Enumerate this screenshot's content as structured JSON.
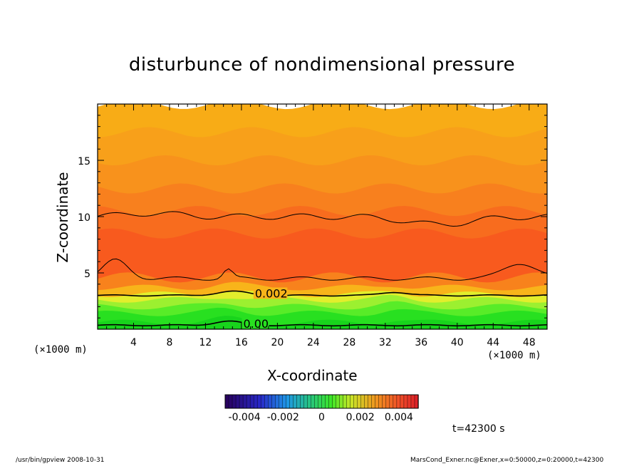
{
  "chart_data": {
    "type": "heatmap",
    "title": "disturbunce of nondimensional pressure",
    "xlabel": "X-coordinate",
    "ylabel": "Z-coordinate",
    "x_unit": "(×1000 m)",
    "x_unit_secondary": "(×1000 m)",
    "xlim": [
      0,
      50
    ],
    "ylim": [
      0,
      20
    ],
    "x_ticks": [
      4,
      8,
      12,
      16,
      20,
      24,
      28,
      32,
      36,
      40,
      44,
      48
    ],
    "y_ticks": [
      5,
      10,
      15
    ],
    "contour_labels": [
      {
        "text": "0.002",
        "x": 17.5,
        "z": 3.2
      },
      {
        "text": "0.00",
        "x": 16.2,
        "z": 0.5
      }
    ],
    "layers_by_z": [
      {
        "z0": 0.0,
        "z1": 0.6,
        "color": "#18d41c"
      },
      {
        "z0": 0.6,
        "z1": 1.4,
        "color": "#28e020"
      },
      {
        "z0": 1.4,
        "z1": 2.0,
        "color": "#58ec28"
      },
      {
        "z0": 2.0,
        "z1": 2.6,
        "color": "#9cf030"
      },
      {
        "z0": 2.6,
        "z1": 3.1,
        "color": "#e2ee2c"
      },
      {
        "z0": 3.1,
        "z1": 3.7,
        "color": "#f8b41a"
      },
      {
        "z0": 3.7,
        "z1": 4.6,
        "color": "#f8821c"
      },
      {
        "z0": 4.6,
        "z1": 8.5,
        "color": "#f85a1e"
      },
      {
        "z0": 8.5,
        "z1": 10.5,
        "color": "#f86c1e"
      },
      {
        "z0": 10.5,
        "z1": 12.5,
        "color": "#f8801e"
      },
      {
        "z0": 12.5,
        "z1": 15.0,
        "color": "#f8921c"
      },
      {
        "z0": 15.0,
        "z1": 17.5,
        "color": "#f8a01a"
      },
      {
        "z0": 17.5,
        "z1": 20.0,
        "color": "#f8ac16"
      }
    ],
    "colorbar": {
      "range": [
        -0.005,
        0.005
      ],
      "tick_labels": [
        "-0.004",
        "-0.002",
        "0",
        "0.002",
        "0.004"
      ],
      "tick_values": [
        -0.004,
        -0.002,
        0,
        0.002,
        0.004
      ]
    },
    "grid": false
  },
  "time_label": "t=42300 s",
  "footer": {
    "left": "/usr/bin/gpview   2008-10-31",
    "right": "MarsCond_Exner.nc@Exner,x=0:50000,z=0:20000,t=42300"
  }
}
